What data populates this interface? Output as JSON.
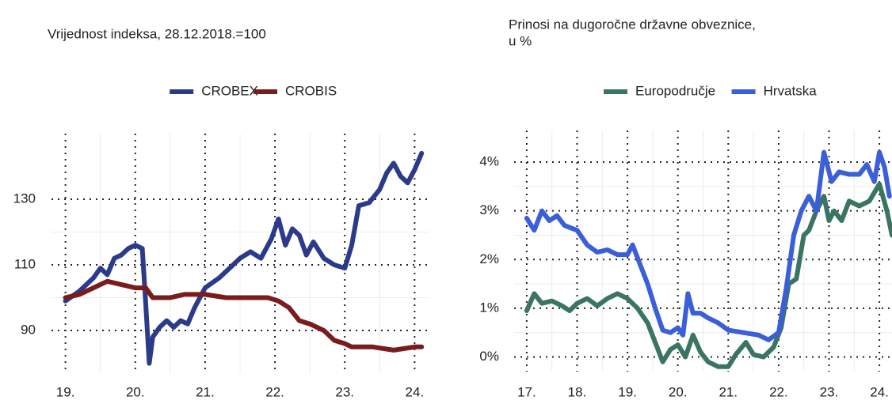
{
  "chart_data": [
    {
      "type": "line",
      "title": "Vrijednost indeksa, 28.12.2018.=100",
      "xlim": [
        2018.8,
        2024.2
      ],
      "xticks": [
        {
          "value": 2019,
          "label": "19."
        },
        {
          "value": 2020,
          "label": "20."
        },
        {
          "value": 2021,
          "label": "21."
        },
        {
          "value": 2022,
          "label": "22."
        },
        {
          "value": 2023,
          "label": "23."
        },
        {
          "value": 2024,
          "label": "24."
        }
      ],
      "ylim": [
        77,
        150
      ],
      "yticks": [
        90,
        110,
        130
      ],
      "grid": true,
      "legend": "top",
      "series": [
        {
          "name": "CROBEX",
          "color": "#2b3a8a",
          "x": [
            2019.0,
            2019.2,
            2019.4,
            2019.5,
            2019.6,
            2019.7,
            2019.8,
            2019.9,
            2020.0,
            2020.1,
            2020.15,
            2020.2,
            2020.25,
            2020.35,
            2020.45,
            2020.55,
            2020.65,
            2020.75,
            2020.85,
            2021.0,
            2021.2,
            2021.35,
            2021.5,
            2021.65,
            2021.8,
            2021.95,
            2022.05,
            2022.15,
            2022.25,
            2022.35,
            2022.45,
            2022.55,
            2022.7,
            2022.85,
            2023.0,
            2023.1,
            2023.2,
            2023.35,
            2023.5,
            2023.6,
            2023.7,
            2023.8,
            2023.9,
            2024.0,
            2024.1
          ],
          "values": [
            99,
            102,
            106,
            109,
            107,
            112,
            113,
            115,
            116,
            115,
            98,
            80,
            88,
            91,
            93,
            91,
            93,
            92,
            97,
            103,
            106,
            109,
            112,
            114,
            112,
            118,
            124,
            116,
            121,
            119,
            113,
            117,
            112,
            110,
            109,
            116,
            128,
            129,
            133,
            138,
            141,
            137,
            135,
            139,
            144
          ]
        },
        {
          "name": "CROBIS",
          "color": "#7b1c1c",
          "x": [
            2019.0,
            2019.2,
            2019.4,
            2019.6,
            2019.8,
            2020.0,
            2020.15,
            2020.25,
            2020.35,
            2020.5,
            2020.7,
            2021.0,
            2021.3,
            2021.6,
            2021.9,
            2022.05,
            2022.2,
            2022.35,
            2022.5,
            2022.7,
            2022.85,
            2023.0,
            2023.1,
            2023.4,
            2023.7,
            2024.0,
            2024.1
          ],
          "values": [
            100,
            101,
            103,
            105,
            104,
            103,
            103,
            100,
            100,
            100,
            101,
            101,
            100,
            100,
            100,
            99,
            97,
            93,
            92,
            90,
            87,
            86,
            85,
            85,
            84,
            85,
            85
          ]
        }
      ]
    },
    {
      "type": "line",
      "title": [
        "Prinosi na dugoročne državne obveznice,",
        "u %"
      ],
      "xlim": [
        2016.75,
        2024.25
      ],
      "xticks": [
        {
          "value": 2017,
          "label": "17."
        },
        {
          "value": 2018,
          "label": "18."
        },
        {
          "value": 2019,
          "label": "19."
        },
        {
          "value": 2020,
          "label": "20."
        },
        {
          "value": 2021,
          "label": "21."
        },
        {
          "value": 2022,
          "label": "22."
        },
        {
          "value": 2023,
          "label": "23."
        },
        {
          "value": 2024,
          "label": "24."
        }
      ],
      "ylim": [
        -0.3,
        4.65
      ],
      "yticks": [
        {
          "value": 0,
          "label": "0%"
        },
        {
          "value": 1,
          "label": "1%"
        },
        {
          "value": 2,
          "label": "2%"
        },
        {
          "value": 3,
          "label": "3%"
        },
        {
          "value": 4,
          "label": "4%"
        }
      ],
      "grid": true,
      "legend": "top",
      "series": [
        {
          "name": "Europodručje",
          "color": "#3a7563",
          "x": [
            2017.0,
            2017.15,
            2017.3,
            2017.5,
            2017.7,
            2017.85,
            2018.0,
            2018.2,
            2018.4,
            2018.6,
            2018.8,
            2019.0,
            2019.2,
            2019.4,
            2019.55,
            2019.7,
            2019.85,
            2020.0,
            2020.15,
            2020.3,
            2020.45,
            2020.6,
            2020.8,
            2021.0,
            2021.15,
            2021.35,
            2021.5,
            2021.7,
            2021.9,
            2022.05,
            2022.2,
            2022.35,
            2022.5,
            2022.6,
            2022.75,
            2022.9,
            2023.0,
            2023.1,
            2023.25,
            2023.4,
            2023.6,
            2023.8,
            2024.0,
            2024.15,
            2024.25
          ],
          "values": [
            0.95,
            1.3,
            1.1,
            1.15,
            1.05,
            0.95,
            1.1,
            1.2,
            1.05,
            1.2,
            1.3,
            1.2,
            1.0,
            0.7,
            0.3,
            -0.1,
            0.15,
            0.25,
            0.0,
            0.45,
            0.1,
            -0.1,
            -0.2,
            -0.2,
            0.05,
            0.3,
            0.05,
            0.0,
            0.2,
            0.6,
            1.5,
            1.6,
            2.5,
            2.6,
            3.0,
            3.3,
            2.8,
            3.0,
            2.8,
            3.2,
            3.1,
            3.2,
            3.55,
            3.0,
            2.5
          ]
        },
        {
          "name": "Hrvatska",
          "color": "#3a5fd9",
          "x": [
            2017.0,
            2017.15,
            2017.3,
            2017.45,
            2017.6,
            2017.75,
            2018.0,
            2018.2,
            2018.4,
            2018.6,
            2018.8,
            2019.0,
            2019.1,
            2019.25,
            2019.4,
            2019.55,
            2019.7,
            2019.85,
            2020.0,
            2020.1,
            2020.2,
            2020.3,
            2020.45,
            2020.6,
            2020.8,
            2021.0,
            2021.3,
            2021.6,
            2021.8,
            2022.0,
            2022.15,
            2022.3,
            2022.45,
            2022.6,
            2022.75,
            2022.9,
            2023.05,
            2023.2,
            2023.4,
            2023.6,
            2023.75,
            2023.9,
            2024.0,
            2024.1,
            2024.2
          ],
          "values": [
            2.85,
            2.6,
            3.0,
            2.8,
            2.9,
            2.7,
            2.6,
            2.3,
            2.15,
            2.2,
            2.1,
            2.1,
            2.3,
            1.9,
            1.5,
            1.0,
            0.55,
            0.5,
            0.6,
            0.45,
            1.3,
            0.9,
            0.9,
            0.8,
            0.7,
            0.55,
            0.5,
            0.45,
            0.35,
            0.5,
            1.4,
            2.5,
            3.0,
            3.3,
            3.0,
            4.2,
            3.6,
            3.8,
            3.75,
            3.75,
            3.95,
            3.6,
            4.2,
            3.9,
            3.3
          ]
        }
      ]
    }
  ]
}
